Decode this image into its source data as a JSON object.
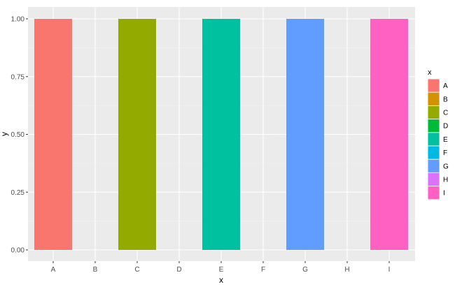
{
  "chart_data": {
    "type": "bar",
    "categories": [
      "A",
      "B",
      "C",
      "D",
      "E",
      "F",
      "G",
      "H",
      "I"
    ],
    "values": [
      1,
      0,
      1,
      0,
      1,
      0,
      1,
      0,
      1
    ],
    "colors": [
      "#F8766D",
      "#D39200",
      "#93AA00",
      "#00BA38",
      "#00C19F",
      "#00B9E3",
      "#619CFF",
      "#DB72FB",
      "#FF61C3"
    ],
    "xlabel": "x",
    "ylabel": "y",
    "ylim": [
      0,
      1.05
    ],
    "y_ticks": [
      0,
      0.25,
      0.5,
      0.75,
      1.0
    ],
    "y_tick_labels": [
      "0.00",
      "0.25",
      "0.50",
      "0.75",
      "1.00"
    ],
    "grid": true,
    "panel_background": "#EBEBEB",
    "legend": {
      "title": "x",
      "placement": "right",
      "entries": [
        "A",
        "B",
        "C",
        "D",
        "E",
        "F",
        "G",
        "H",
        "I"
      ]
    }
  }
}
